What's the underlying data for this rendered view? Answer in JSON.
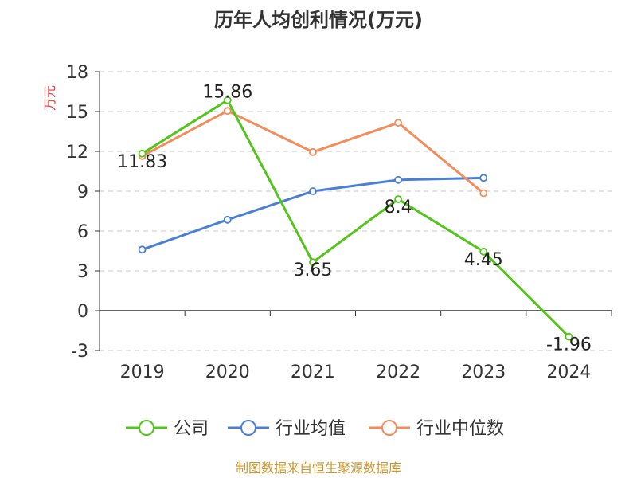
{
  "chart_data": {
    "type": "line",
    "title": "历年人均创利情况(万元)",
    "ylabel": "万元",
    "categories": [
      "2019",
      "2020",
      "2021",
      "2022",
      "2023",
      "2024"
    ],
    "yticks": [
      "18",
      "15",
      "12",
      "9",
      "6",
      "3",
      "0",
      "-3"
    ],
    "ylim": [
      -3,
      18
    ],
    "grid": true,
    "legend_position": "bottom",
    "series": [
      {
        "name": "公司",
        "color": "#52c41a",
        "values": [
          11.83,
          15.86,
          3.65,
          8.4,
          4.45,
          -1.96
        ],
        "labels": [
          "11.83",
          "15.86",
          "3.65",
          "8.4",
          "4.45",
          "-1.96"
        ]
      },
      {
        "name": "行业均值",
        "color": "#4a7fd6",
        "values": [
          4.6,
          6.85,
          9.0,
          9.85,
          10.0,
          null
        ]
      },
      {
        "name": "行业中位数",
        "color": "#f28c5a",
        "values": [
          11.65,
          15.05,
          11.95,
          14.15,
          8.85,
          null
        ]
      }
    ],
    "source": "制图数据来自恒生聚源数据库"
  }
}
